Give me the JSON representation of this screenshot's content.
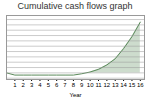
{
  "chart_data": {
    "type": "area",
    "title": "Cumulative cash flows graph",
    "xlabel": "Year",
    "x": [
      0,
      1,
      2,
      3,
      4,
      5,
      6,
      7,
      8,
      9,
      10,
      11,
      12,
      13,
      14,
      15,
      16
    ],
    "values": [
      0,
      -0.05,
      -0.05,
      -0.05,
      -0.05,
      -0.05,
      -0.05,
      -0.05,
      -0.05,
      -0.02,
      0.02,
      0.08,
      0.18,
      0.32,
      0.55,
      0.82,
      1.15
    ],
    "color": "#5a8a5a",
    "xlim": [
      0,
      16.5
    ],
    "ylim": [
      -0.15,
      1.3
    ],
    "xticks": [
      1,
      2,
      3,
      4,
      5,
      6,
      7,
      8,
      9,
      10,
      11,
      12,
      13,
      14,
      15,
      16
    ],
    "yticks": [
      -0.12083333333333333,
      0,
      0.12083333333333333,
      0.24166666666666667,
      0.3625,
      0.48333333333333334,
      0.6041666666666666,
      0.725,
      0.8458333333333333,
      0.9666666666666667,
      1.0875,
      1.2083333333333333
    ],
    "grid": true,
    "tick_labels": "x"
  }
}
